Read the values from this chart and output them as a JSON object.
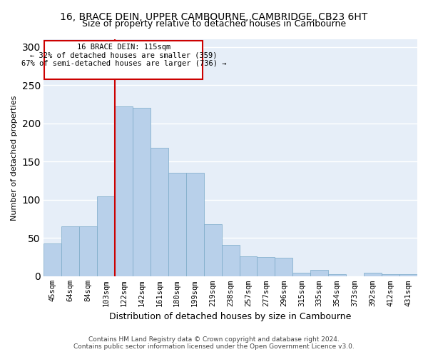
{
  "title": "16, BRACE DEIN, UPPER CAMBOURNE, CAMBRIDGE, CB23 6HT",
  "subtitle": "Size of property relative to detached houses in Cambourne",
  "xlabel": "Distribution of detached houses by size in Cambourne",
  "ylabel": "Number of detached properties",
  "bar_color": "#b8d0ea",
  "bar_edge_color": "#7aaac8",
  "plot_bg_color": "#e6eef8",
  "annotation_line_color": "#cc0000",
  "annotation_box_color": "#cc0000",
  "categories": [
    "45sqm",
    "64sqm",
    "84sqm",
    "103sqm",
    "122sqm",
    "142sqm",
    "161sqm",
    "180sqm",
    "199sqm",
    "219sqm",
    "238sqm",
    "257sqm",
    "277sqm",
    "296sqm",
    "315sqm",
    "335sqm",
    "354sqm",
    "373sqm",
    "392sqm",
    "412sqm",
    "431sqm"
  ],
  "values": [
    43,
    65,
    65,
    105,
    222,
    220,
    168,
    135,
    135,
    68,
    41,
    26,
    25,
    24,
    5,
    8,
    3,
    0,
    5,
    3,
    3
  ],
  "red_line_bin_index": 4,
  "annotation_line1": "16 BRACE DEIN: 115sqm",
  "annotation_line2": "← 32% of detached houses are smaller (359)",
  "annotation_line3": "67% of semi-detached houses are larger (736) →",
  "ylim_max": 310,
  "yticks": [
    0,
    50,
    100,
    150,
    200,
    250,
    300
  ],
  "footer_line1": "Contains HM Land Registry data © Crown copyright and database right 2024.",
  "footer_line2": "Contains public sector information licensed under the Open Government Licence v3.0."
}
